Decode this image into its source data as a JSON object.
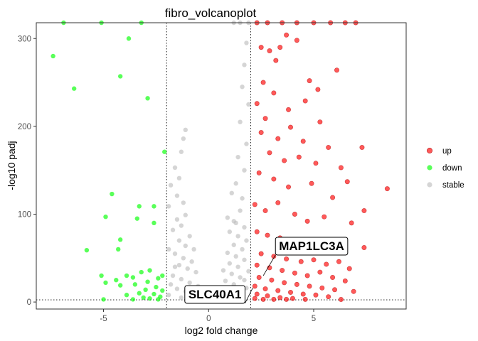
{
  "chart_data": {
    "type": "scatter",
    "title": "fibro_volcanoplot",
    "xlabel": "log2 fold change",
    "ylabel": "-log10 padj",
    "xlim": [
      -8.2,
      9.4
    ],
    "ylim": [
      -8,
      318
    ],
    "x_ticks": [
      -5,
      0,
      5
    ],
    "x_tick_labels": [
      "-5",
      "0",
      "5"
    ],
    "y_ticks": [
      0,
      100,
      200,
      300
    ],
    "y_tick_labels": [
      "0",
      "100",
      "200",
      "300"
    ],
    "thresholds": {
      "log2fc": [
        -2,
        2
      ],
      "padj": 2.5
    },
    "grid": false,
    "legend_position": "right",
    "colors": {
      "up": "#ff0000",
      "down": "#00ff00",
      "stable": "#bebebe"
    },
    "series": [
      {
        "name": "up",
        "color": "#ff0000",
        "points": [
          [
            2.3,
            318
          ],
          [
            2.8,
            318
          ],
          [
            3.5,
            318
          ],
          [
            4.2,
            318
          ],
          [
            5,
            318
          ],
          [
            5.8,
            318
          ],
          [
            6.5,
            318
          ],
          [
            7,
            318
          ],
          [
            2.5,
            290
          ],
          [
            2.9,
            286
          ],
          [
            3.4,
            290
          ],
          [
            4.2,
            298
          ],
          [
            3.7,
            304
          ],
          [
            3.2,
            275
          ],
          [
            2.6,
            250
          ],
          [
            3.1,
            238
          ],
          [
            4.8,
            252
          ],
          [
            5.2,
            242
          ],
          [
            6.1,
            264
          ],
          [
            2.3,
            226
          ],
          [
            2.7,
            209
          ],
          [
            3.8,
            219
          ],
          [
            4.6,
            229
          ],
          [
            5.3,
            205
          ],
          [
            2.5,
            193
          ],
          [
            3.3,
            186
          ],
          [
            3.9,
            199
          ],
          [
            4.5,
            183
          ],
          [
            5.7,
            176
          ],
          [
            7.3,
            176
          ],
          [
            2.9,
            170
          ],
          [
            3.6,
            161
          ],
          [
            4.3,
            165
          ],
          [
            5.1,
            158
          ],
          [
            6.3,
            153
          ],
          [
            6.6,
            137
          ],
          [
            8.5,
            129
          ],
          [
            2.4,
            147
          ],
          [
            3.1,
            140
          ],
          [
            3.8,
            131
          ],
          [
            4.9,
            135
          ],
          [
            5.9,
            119
          ],
          [
            2.2,
            111
          ],
          [
            2.7,
            104
          ],
          [
            3.3,
            113
          ],
          [
            4.1,
            100
          ],
          [
            4.7,
            92
          ],
          [
            5.5,
            97
          ],
          [
            6.8,
            90
          ],
          [
            7.4,
            104
          ],
          [
            2.3,
            80
          ],
          [
            2.8,
            76
          ],
          [
            3.4,
            73
          ],
          [
            4,
            69
          ],
          [
            4.6,
            66
          ],
          [
            5.2,
            62
          ],
          [
            5.8,
            59
          ],
          [
            6.4,
            56
          ],
          [
            7.4,
            62
          ],
          [
            2.5,
            55
          ],
          [
            3.1,
            52
          ],
          [
            3.7,
            49
          ],
          [
            4.4,
            46
          ],
          [
            5,
            48
          ],
          [
            5.6,
            43
          ],
          [
            6.2,
            46
          ],
          [
            6.7,
            38
          ],
          [
            2.3,
            42
          ],
          [
            2.9,
            39
          ],
          [
            3.5,
            36
          ],
          [
            4.1,
            33
          ],
          [
            4.7,
            30
          ],
          [
            5.3,
            34
          ],
          [
            5.9,
            28
          ],
          [
            6.5,
            24
          ],
          [
            2.4,
            28
          ],
          [
            3,
            25
          ],
          [
            3.6,
            22
          ],
          [
            4.2,
            20
          ],
          [
            4.8,
            18
          ],
          [
            5.4,
            16
          ],
          [
            6,
            14
          ],
          [
            6.9,
            12
          ],
          [
            2.2,
            18
          ],
          [
            2.7,
            15
          ],
          [
            3.3,
            13
          ],
          [
            3.9,
            11
          ],
          [
            4.5,
            9
          ],
          [
            5.1,
            8
          ],
          [
            5.7,
            6
          ],
          [
            2.3,
            9
          ],
          [
            2.8,
            7
          ],
          [
            3.4,
            5
          ],
          [
            4,
            4
          ],
          [
            4.6,
            3
          ],
          [
            2.2,
            4
          ],
          [
            2.6,
            3
          ],
          [
            3.1,
            3
          ],
          [
            3.7,
            3
          ],
          [
            6.3,
            2.9
          ]
        ]
      },
      {
        "name": "down",
        "color": "#00ff00",
        "points": [
          [
            -6.9,
            318
          ],
          [
            -5.1,
            318
          ],
          [
            -3.2,
            318
          ],
          [
            -3.8,
            300
          ],
          [
            -7.4,
            280
          ],
          [
            -6.4,
            243
          ],
          [
            -4.2,
            257
          ],
          [
            -2.9,
            232
          ],
          [
            -2.1,
            171
          ],
          [
            -4.6,
            123
          ],
          [
            -3.3,
            109
          ],
          [
            -2.6,
            109
          ],
          [
            -3.4,
            95
          ],
          [
            -2.6,
            90
          ],
          [
            -4.9,
            97
          ],
          [
            -4.2,
            71
          ],
          [
            -5.8,
            59
          ],
          [
            -4.3,
            60
          ],
          [
            -5.1,
            30
          ],
          [
            -4.4,
            25
          ],
          [
            -3.9,
            30
          ],
          [
            -3.6,
            28
          ],
          [
            -3.2,
            34
          ],
          [
            -2.8,
            36
          ],
          [
            -2.4,
            27
          ],
          [
            -2.2,
            30
          ],
          [
            -2.9,
            23
          ],
          [
            -3.5,
            20
          ],
          [
            -4.2,
            19
          ],
          [
            -4.9,
            22
          ],
          [
            -2.5,
            17
          ],
          [
            -3,
            14
          ],
          [
            -2.2,
            13
          ],
          [
            -3.3,
            10
          ],
          [
            -3.9,
            8
          ],
          [
            -2.6,
            9
          ],
          [
            -2.3,
            6
          ],
          [
            -3.1,
            5
          ],
          [
            -2.8,
            4
          ],
          [
            -5,
            3
          ],
          [
            -2.4,
            3
          ],
          [
            -3.6,
            3
          ]
        ]
      },
      {
        "name": "stable",
        "color": "#bebebe",
        "points": [
          [
            1.9,
            318
          ],
          [
            1.5,
            318
          ],
          [
            1.2,
            318
          ],
          [
            1.8,
            295
          ],
          [
            1.7,
            270
          ],
          [
            1.6,
            245
          ],
          [
            1.9,
            225
          ],
          [
            1.5,
            205
          ],
          [
            1.8,
            180
          ],
          [
            1.4,
            165
          ],
          [
            1.7,
            150
          ],
          [
            1.3,
            135
          ],
          [
            -1.1,
            196
          ],
          [
            -1.2,
            186
          ],
          [
            -1.3,
            171
          ],
          [
            -1.6,
            153
          ],
          [
            -1.4,
            141
          ],
          [
            -1.8,
            133
          ],
          [
            -1.5,
            121
          ],
          [
            -1.9,
            109
          ],
          [
            -1.2,
            113
          ],
          [
            1.1,
            124
          ],
          [
            1.6,
            118
          ],
          [
            0.9,
            96
          ],
          [
            1.5,
            104
          ],
          [
            1.2,
            92
          ],
          [
            -1.1,
            99
          ],
          [
            -1.5,
            94
          ],
          [
            -1.3,
            87
          ],
          [
            -1.7,
            82
          ],
          [
            -0.9,
            75
          ],
          [
            -1.4,
            70
          ],
          [
            -1.1,
            64
          ],
          [
            -0.7,
            60
          ],
          [
            -1.6,
            55
          ],
          [
            -1.2,
            50
          ],
          [
            -0.8,
            46
          ],
          [
            -1.4,
            42
          ],
          [
            -1,
            38
          ],
          [
            -0.6,
            34
          ],
          [
            -1.7,
            30
          ],
          [
            -1.3,
            26
          ],
          [
            -0.9,
            22
          ],
          [
            -0.5,
            18
          ],
          [
            -1.5,
            15
          ],
          [
            -1.1,
            12
          ],
          [
            -0.7,
            9
          ],
          [
            -0.3,
            6
          ],
          [
            -1.9,
            8
          ],
          [
            -1.3,
            5
          ],
          [
            -0.6,
            3
          ],
          [
            0.3,
            5
          ],
          [
            0.6,
            8
          ],
          [
            0.9,
            12
          ],
          [
            0.5,
            16
          ],
          [
            1.2,
            20
          ],
          [
            0.8,
            24
          ],
          [
            1.5,
            28
          ],
          [
            1.1,
            32
          ],
          [
            0.7,
            36
          ],
          [
            1.4,
            40
          ],
          [
            1,
            44
          ],
          [
            1.7,
            48
          ],
          [
            1.3,
            52
          ],
          [
            0.9,
            56
          ],
          [
            1.6,
            60
          ],
          [
            1.2,
            65
          ],
          [
            1.8,
            70
          ],
          [
            1.4,
            75
          ],
          [
            1,
            80
          ],
          [
            1.7,
            85
          ],
          [
            1.3,
            90
          ],
          [
            0.2,
            3
          ],
          [
            0.4,
            3
          ],
          [
            0.8,
            3
          ],
          [
            1.5,
            12
          ],
          [
            1.8,
            16
          ],
          [
            1.9,
            35
          ],
          [
            1.7,
            25
          ],
          [
            1.4,
            8
          ],
          [
            1.6,
            3
          ],
          [
            -1.8,
            20
          ],
          [
            -1.6,
            40
          ],
          [
            -1.9,
            60
          ]
        ]
      }
    ],
    "annotations": [
      {
        "label": "MAP1LC3A",
        "point": [
          2.6,
          30
        ],
        "label_pos": [
          4.9,
          64
        ]
      },
      {
        "label": "SLC40A1",
        "point": [
          2.1,
          16
        ],
        "label_pos": [
          0.3,
          9
        ]
      }
    ]
  }
}
